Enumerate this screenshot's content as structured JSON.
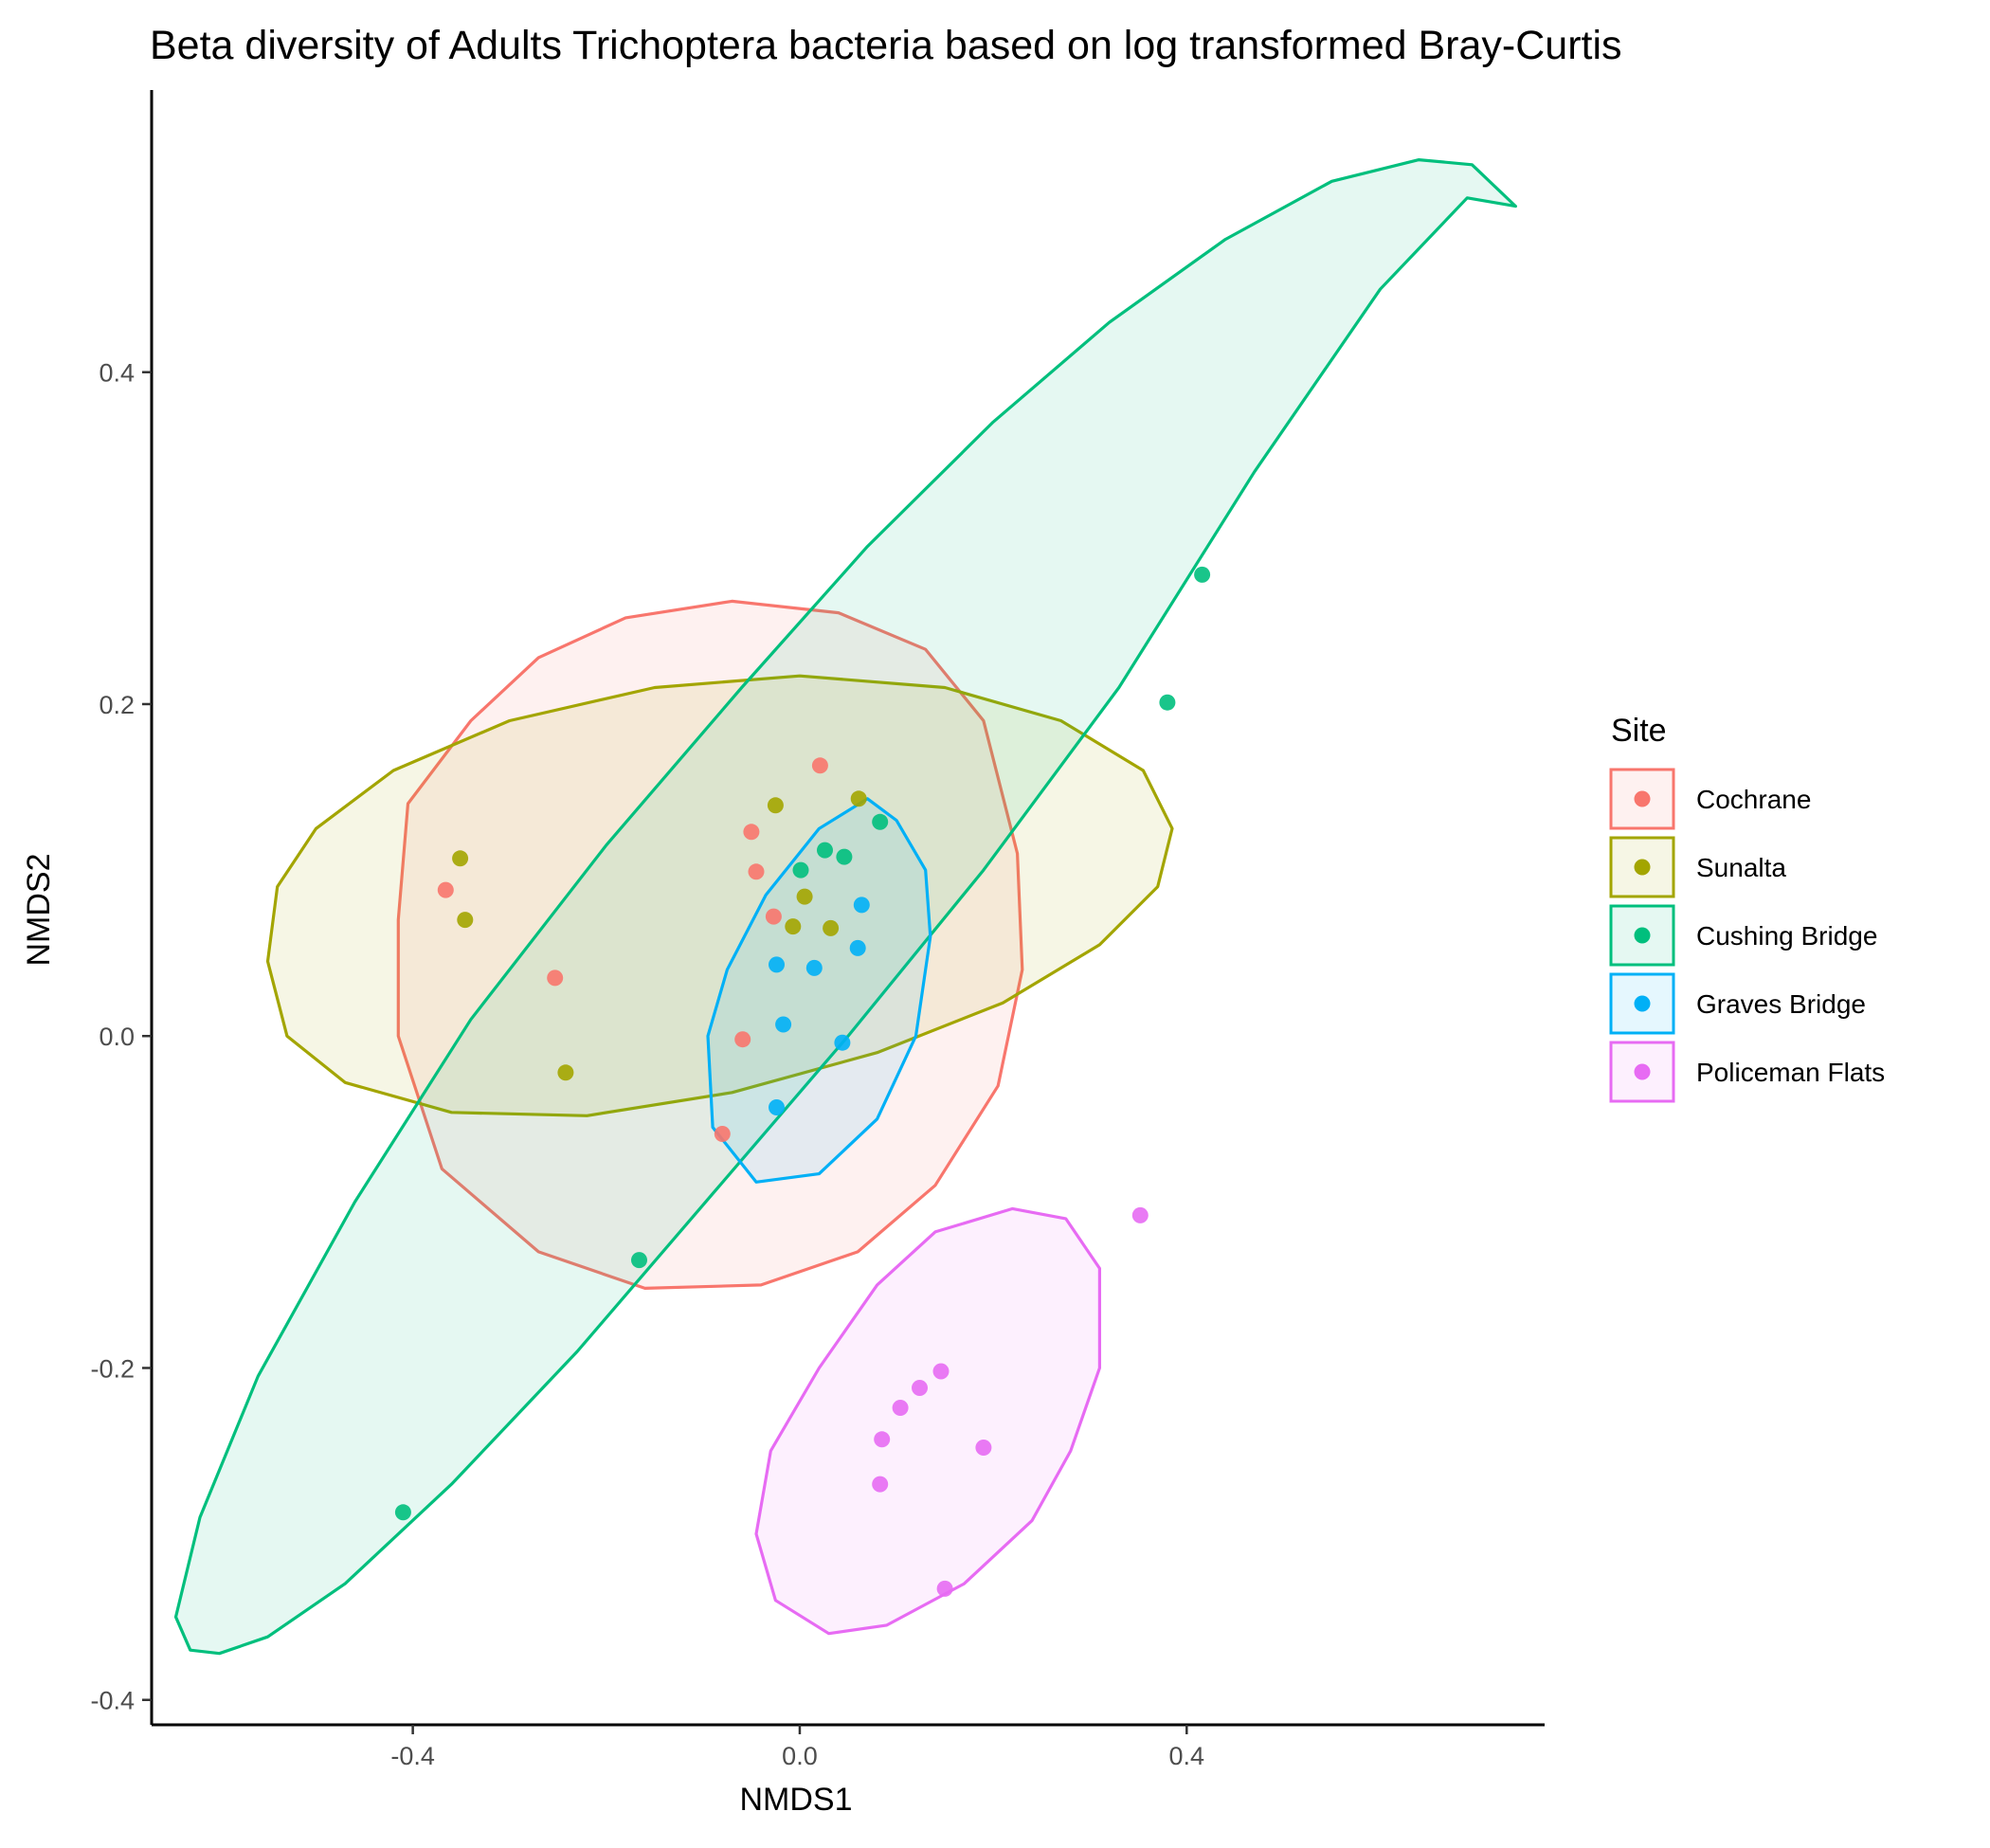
{
  "chart_data": {
    "type": "scatter",
    "title": "Beta diversity of Adults Trichoptera bacteria based on log transformed Bray-Curtis",
    "xlabel": "NMDS1",
    "ylabel": "NMDS2",
    "xlim": [
      -0.67,
      0.77
    ],
    "ylim": [
      -0.415,
      0.57
    ],
    "x_ticks": [
      -0.4,
      0.0,
      0.4
    ],
    "x_tick_labels": [
      "-0.4",
      "0.0",
      "0.4"
    ],
    "y_ticks": [
      -0.4,
      -0.2,
      0.0,
      0.2,
      0.4
    ],
    "y_tick_labels": [
      "-0.4",
      "-0.2",
      "0.0",
      "0.2",
      "0.4"
    ],
    "grid": false,
    "legend": {
      "title": "Site",
      "placement": "right"
    },
    "series": [
      {
        "name": "Cochrane",
        "color": "#F8766D",
        "points": [
          [
            -0.366,
            0.088
          ],
          [
            -0.253,
            0.035
          ],
          [
            0.021,
            0.163
          ],
          [
            -0.05,
            0.123
          ],
          [
            -0.045,
            0.099
          ],
          [
            -0.027,
            0.072
          ],
          [
            -0.059,
            -0.002
          ],
          [
            -0.08,
            -0.059
          ]
        ],
        "ellipse": [
          [
            -0.405,
            0.14
          ],
          [
            -0.34,
            0.19
          ],
          [
            -0.27,
            0.228
          ],
          [
            -0.18,
            0.252
          ],
          [
            -0.07,
            0.262
          ],
          [
            0.04,
            0.255
          ],
          [
            0.13,
            0.233
          ],
          [
            0.19,
            0.19
          ],
          [
            0.225,
            0.11
          ],
          [
            0.23,
            0.04
          ],
          [
            0.205,
            -0.03
          ],
          [
            0.14,
            -0.09
          ],
          [
            0.06,
            -0.13
          ],
          [
            -0.04,
            -0.15
          ],
          [
            -0.16,
            -0.152
          ],
          [
            -0.27,
            -0.13
          ],
          [
            -0.37,
            -0.08
          ],
          [
            -0.415,
            0.0
          ],
          [
            -0.415,
            0.07
          ]
        ]
      },
      {
        "name": "Sunalta",
        "color": "#A3A500",
        "points": [
          [
            -0.351,
            0.107
          ],
          [
            -0.346,
            0.07
          ],
          [
            -0.242,
            -0.022
          ],
          [
            -0.025,
            0.139
          ],
          [
            0.061,
            0.143
          ],
          [
            0.005,
            0.084
          ],
          [
            -0.007,
            0.066
          ],
          [
            0.032,
            0.065
          ]
        ],
        "ellipse": [
          [
            -0.55,
            0.045
          ],
          [
            -0.54,
            0.09
          ],
          [
            -0.5,
            0.125
          ],
          [
            -0.42,
            0.16
          ],
          [
            -0.3,
            0.19
          ],
          [
            -0.15,
            0.21
          ],
          [
            0.0,
            0.217
          ],
          [
            0.15,
            0.21
          ],
          [
            0.27,
            0.19
          ],
          [
            0.355,
            0.16
          ],
          [
            0.385,
            0.125
          ],
          [
            0.37,
            0.09
          ],
          [
            0.31,
            0.055
          ],
          [
            0.21,
            0.02
          ],
          [
            0.08,
            -0.01
          ],
          [
            -0.07,
            -0.034
          ],
          [
            -0.22,
            -0.048
          ],
          [
            -0.36,
            -0.046
          ],
          [
            -0.47,
            -0.028
          ],
          [
            -0.53,
            0.0
          ]
        ]
      },
      {
        "name": "Cushing Bridge",
        "color": "#00BF7D",
        "points": [
          [
            0.416,
            0.278
          ],
          [
            0.38,
            0.201
          ],
          [
            0.083,
            0.129
          ],
          [
            0.026,
            0.112
          ],
          [
            0.046,
            0.108
          ],
          [
            0.001,
            0.1
          ],
          [
            -0.166,
            -0.135
          ],
          [
            -0.41,
            -0.287
          ]
        ],
        "ellipse": [
          [
            0.74,
            0.5
          ],
          [
            0.695,
            0.525
          ],
          [
            0.64,
            0.528
          ],
          [
            0.55,
            0.515
          ],
          [
            0.44,
            0.48
          ],
          [
            0.32,
            0.43
          ],
          [
            0.2,
            0.37
          ],
          [
            0.07,
            0.295
          ],
          [
            -0.06,
            0.21
          ],
          [
            -0.2,
            0.115
          ],
          [
            -0.34,
            0.01
          ],
          [
            -0.46,
            -0.1
          ],
          [
            -0.56,
            -0.205
          ],
          [
            -0.62,
            -0.29
          ],
          [
            -0.645,
            -0.35
          ],
          [
            -0.63,
            -0.37
          ],
          [
            -0.6,
            -0.372
          ],
          [
            -0.55,
            -0.362
          ],
          [
            -0.47,
            -0.33
          ],
          [
            -0.36,
            -0.27
          ],
          [
            -0.23,
            -0.19
          ],
          [
            -0.09,
            -0.095
          ],
          [
            0.05,
            0.0
          ],
          [
            0.19,
            0.1
          ],
          [
            0.33,
            0.21
          ],
          [
            0.47,
            0.34
          ],
          [
            0.6,
            0.45
          ],
          [
            0.69,
            0.505
          ]
        ]
      },
      {
        "name": "Graves Bridge",
        "color": "#00B0F6",
        "points": [
          [
            0.064,
            0.079
          ],
          [
            0.06,
            0.053
          ],
          [
            -0.024,
            0.043
          ],
          [
            0.015,
            0.041
          ],
          [
            -0.017,
            0.007
          ],
          [
            0.044,
            -0.004
          ],
          [
            -0.024,
            -0.043
          ]
        ],
        "ellipse": [
          [
            0.07,
            0.143
          ],
          [
            0.1,
            0.13
          ],
          [
            0.13,
            0.1
          ],
          [
            0.135,
            0.06
          ],
          [
            0.12,
            0.0
          ],
          [
            0.08,
            -0.05
          ],
          [
            0.02,
            -0.083
          ],
          [
            -0.045,
            -0.088
          ],
          [
            -0.09,
            -0.055
          ],
          [
            -0.095,
            0.0
          ],
          [
            -0.075,
            0.04
          ],
          [
            -0.035,
            0.085
          ],
          [
            0.02,
            0.125
          ]
        ]
      },
      {
        "name": "Policeman Flats",
        "color": "#E76BF3",
        "points": [
          [
            0.352,
            -0.108
          ],
          [
            0.146,
            -0.202
          ],
          [
            0.124,
            -0.212
          ],
          [
            0.104,
            -0.224
          ],
          [
            0.085,
            -0.243
          ],
          [
            0.19,
            -0.248
          ],
          [
            0.083,
            -0.27
          ],
          [
            0.15,
            -0.333
          ]
        ],
        "ellipse": [
          [
            0.22,
            -0.104
          ],
          [
            0.275,
            -0.11
          ],
          [
            0.31,
            -0.14
          ],
          [
            0.31,
            -0.2
          ],
          [
            0.28,
            -0.25
          ],
          [
            0.24,
            -0.292
          ],
          [
            0.17,
            -0.33
          ],
          [
            0.09,
            -0.355
          ],
          [
            0.03,
            -0.36
          ],
          [
            -0.025,
            -0.34
          ],
          [
            -0.045,
            -0.3
          ],
          [
            -0.03,
            -0.25
          ],
          [
            0.02,
            -0.2
          ],
          [
            0.08,
            -0.15
          ],
          [
            0.14,
            -0.118
          ]
        ]
      }
    ]
  }
}
